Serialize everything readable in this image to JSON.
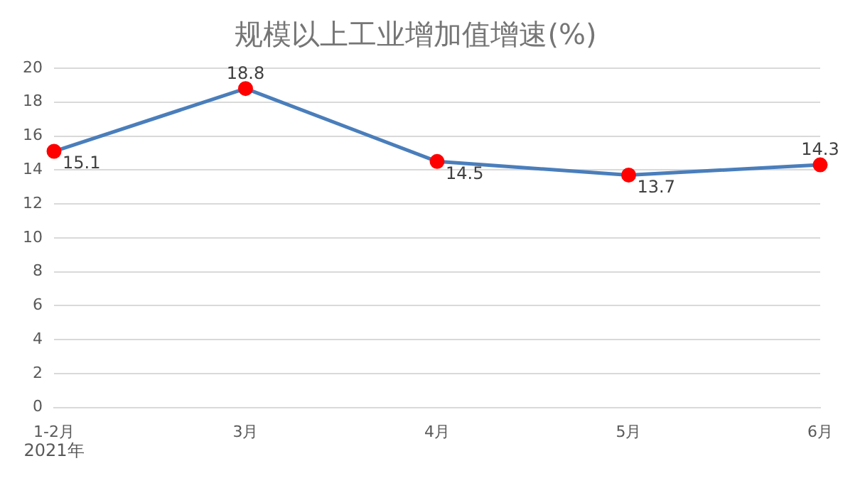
{
  "chart_data": {
    "type": "line",
    "title": "规模以上工业增加值增速(%)",
    "categories": [
      "1-2月",
      "3月",
      "4月",
      "5月",
      "6月"
    ],
    "series": [
      {
        "color": "#4a7ebb",
        "colors": [
          "#ff0000",
          "#ff0000",
          "#ff0000",
          "#ff0000",
          "#ff0000"
        ],
        "values": [
          15.1,
          18.8,
          14.5,
          13.7,
          14.3
        ]
      }
    ],
    "ylim": [
      0,
      20
    ],
    "yticks": [
      0,
      2,
      4,
      6,
      8,
      10,
      12,
      14,
      16,
      18,
      20
    ],
    "grid": "y",
    "legend": false,
    "marker": "circle",
    "line_style": "solid",
    "data_labels": true,
    "annotations": [
      "2021年"
    ]
  }
}
